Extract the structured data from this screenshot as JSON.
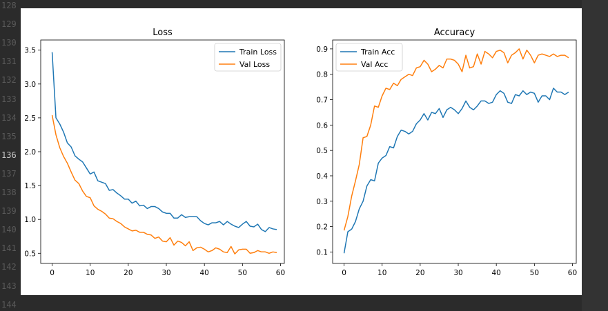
{
  "editor": {
    "line_numbers": [
      "128",
      "129",
      "130",
      "131",
      "132",
      "133",
      "134",
      "135",
      "136",
      "137",
      "138",
      "139",
      "140",
      "141",
      "142",
      "143",
      "144"
    ],
    "active_line": "136"
  },
  "chart_data": [
    {
      "type": "line",
      "title": "Loss",
      "xlabel": "",
      "ylabel": "",
      "xlim": [
        -3,
        61
      ],
      "ylim": [
        0.35,
        3.65
      ],
      "xticks": [
        0,
        10,
        20,
        30,
        40,
        50,
        60
      ],
      "yticks": [
        0.5,
        1.0,
        1.5,
        2.0,
        2.5,
        3.0,
        3.5
      ],
      "ytick_labels": [
        "0.5",
        "1.0",
        "1.5",
        "2.0",
        "2.5",
        "3.0",
        "3.5"
      ],
      "legend_position": "upper right",
      "grid": false,
      "series": [
        {
          "name": "Train Loss",
          "color": "#1f77b4",
          "values": [
            3.47,
            2.5,
            2.41,
            2.29,
            2.13,
            2.07,
            1.94,
            1.89,
            1.85,
            1.76,
            1.67,
            1.7,
            1.57,
            1.55,
            1.53,
            1.43,
            1.44,
            1.39,
            1.35,
            1.3,
            1.3,
            1.24,
            1.27,
            1.2,
            1.21,
            1.16,
            1.19,
            1.19,
            1.16,
            1.11,
            1.09,
            1.09,
            1.02,
            1.02,
            1.07,
            1.03,
            1.04,
            1.04,
            1.04,
            0.98,
            0.94,
            0.92,
            0.95,
            0.95,
            0.97,
            0.92,
            0.97,
            0.93,
            0.9,
            0.88,
            0.93,
            0.97,
            0.9,
            0.89,
            0.93,
            0.85,
            0.82,
            0.88,
            0.86,
            0.85
          ]
        },
        {
          "name": "Val Loss",
          "color": "#ff7f0e",
          "values": [
            2.54,
            2.25,
            2.06,
            1.93,
            1.83,
            1.7,
            1.58,
            1.53,
            1.42,
            1.34,
            1.32,
            1.2,
            1.15,
            1.12,
            1.08,
            1.02,
            1.01,
            0.97,
            0.94,
            0.89,
            0.86,
            0.83,
            0.84,
            0.81,
            0.81,
            0.78,
            0.77,
            0.72,
            0.74,
            0.68,
            0.67,
            0.73,
            0.62,
            0.68,
            0.66,
            0.61,
            0.67,
            0.54,
            0.58,
            0.59,
            0.56,
            0.52,
            0.54,
            0.58,
            0.56,
            0.52,
            0.51,
            0.6,
            0.49,
            0.55,
            0.56,
            0.56,
            0.5,
            0.51,
            0.54,
            0.52,
            0.52,
            0.5,
            0.52,
            0.51
          ]
        }
      ]
    },
    {
      "type": "line",
      "title": "Accuracy",
      "xlabel": "",
      "ylabel": "",
      "xlim": [
        -3,
        61
      ],
      "ylim": [
        0.055,
        0.935
      ],
      "xticks": [
        0,
        10,
        20,
        30,
        40,
        50,
        60
      ],
      "yticks": [
        0.1,
        0.2,
        0.3,
        0.4,
        0.5,
        0.6,
        0.7,
        0.8,
        0.9
      ],
      "ytick_labels": [
        "0.1",
        "0.2",
        "0.3",
        "0.4",
        "0.5",
        "0.6",
        "0.7",
        "0.8",
        "0.9"
      ],
      "legend_position": "upper left",
      "grid": false,
      "series": [
        {
          "name": "Train Acc",
          "color": "#1f77b4",
          "values": [
            0.095,
            0.18,
            0.19,
            0.22,
            0.27,
            0.3,
            0.36,
            0.385,
            0.38,
            0.45,
            0.47,
            0.48,
            0.515,
            0.51,
            0.555,
            0.58,
            0.575,
            0.565,
            0.575,
            0.605,
            0.62,
            0.645,
            0.62,
            0.65,
            0.645,
            0.665,
            0.63,
            0.66,
            0.67,
            0.66,
            0.645,
            0.665,
            0.695,
            0.67,
            0.66,
            0.675,
            0.695,
            0.695,
            0.685,
            0.69,
            0.72,
            0.735,
            0.725,
            0.69,
            0.685,
            0.72,
            0.715,
            0.735,
            0.72,
            0.73,
            0.725,
            0.69,
            0.715,
            0.715,
            0.7,
            0.745,
            0.73,
            0.73,
            0.72,
            0.73
          ]
        },
        {
          "name": "Val Acc",
          "color": "#ff7f0e",
          "values": [
            0.185,
            0.24,
            0.32,
            0.38,
            0.445,
            0.55,
            0.555,
            0.6,
            0.675,
            0.67,
            0.715,
            0.745,
            0.74,
            0.765,
            0.755,
            0.78,
            0.79,
            0.8,
            0.795,
            0.825,
            0.83,
            0.855,
            0.84,
            0.81,
            0.82,
            0.835,
            0.825,
            0.86,
            0.86,
            0.855,
            0.84,
            0.81,
            0.875,
            0.825,
            0.83,
            0.88,
            0.84,
            0.89,
            0.88,
            0.865,
            0.89,
            0.895,
            0.885,
            0.845,
            0.875,
            0.885,
            0.9,
            0.86,
            0.895,
            0.875,
            0.845,
            0.875,
            0.88,
            0.875,
            0.87,
            0.88,
            0.87,
            0.875,
            0.875,
            0.865
          ]
        }
      ]
    }
  ]
}
